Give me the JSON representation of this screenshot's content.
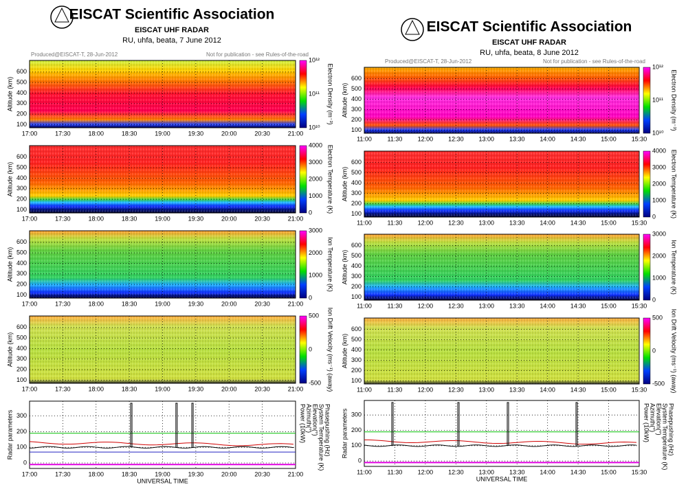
{
  "plots": [
    {
      "header": {
        "org": "EISCAT Scientific Association",
        "radar": "EISCAT UHF RADAR",
        "subtitle": "RU, uhfa, beata, 7 June 2012",
        "produced": "Produced@EISCAT-T, 28-Jun-2012",
        "notice": "Not for publication - see Rules-of-the-road"
      },
      "xticks": [
        "17:00",
        "17:30",
        "18:00",
        "18:30",
        "19:00",
        "19:30",
        "20:00",
        "20:30",
        "21:00"
      ],
      "xlabel": "UNIVERSAL TIME",
      "panels": [
        {
          "ylabel": "Altitude (km)",
          "yticks": [
            "100",
            "200",
            "300",
            "400",
            "500",
            "600"
          ],
          "cbar_label": "Electron Density (m⁻³)",
          "cbar_ticks": [
            "10¹⁰",
            "10¹¹",
            "10¹²"
          ]
        },
        {
          "ylabel": "Altitude (km)",
          "yticks": [
            "100",
            "200",
            "300",
            "400",
            "500",
            "600"
          ],
          "cbar_label": "Electron Temperature (K)",
          "cbar_ticks": [
            "0",
            "1000",
            "2000",
            "3000",
            "4000"
          ]
        },
        {
          "ylabel": "Altitude (km)",
          "yticks": [
            "100",
            "200",
            "300",
            "400",
            "500",
            "600"
          ],
          "cbar_label": "Ion Temperature (K)",
          "cbar_ticks": [
            "0",
            "1000",
            "2000",
            "3000"
          ]
        },
        {
          "ylabel": "Altitude (km)",
          "yticks": [
            "100",
            "200",
            "300",
            "400",
            "500",
            "600"
          ],
          "cbar_label": "Ion Drift Velocity (ms⁻¹) (away)",
          "cbar_ticks": [
            "-500",
            "0",
            "500"
          ]
        },
        {
          "ylabel": "Radar parameters",
          "yticks": [
            "0",
            "100",
            "200",
            "300"
          ],
          "legend": [
            "Power (10kW)",
            "Azimuth(°)",
            "Elevation(°)",
            "System Temperature (K)",
            "Phasepushing (Hz)"
          ]
        }
      ]
    },
    {
      "header": {
        "org": "EISCAT Scientific Association",
        "radar": "EISCAT UHF RADAR",
        "subtitle": "RU, uhfa, beata, 8 June 2012",
        "produced": "Produced@EISCAT-T, 28-Jun-2012",
        "notice": "Not for publication - see Rules-of-the-road"
      },
      "xticks": [
        "11:00",
        "11:30",
        "12:00",
        "12:30",
        "13:00",
        "13:30",
        "14:00",
        "14:30",
        "15:00",
        "15:30"
      ],
      "xlabel": "UNIVERSAL TIME",
      "panels": [
        {
          "ylabel": "Altitude (km)",
          "yticks": [
            "100",
            "200",
            "300",
            "400",
            "500",
            "600"
          ],
          "cbar_label": "Electron Density (m⁻³)",
          "cbar_ticks": [
            "10¹⁰",
            "10¹¹",
            "10¹²"
          ]
        },
        {
          "ylabel": "Altitude (km)",
          "yticks": [
            "100",
            "200",
            "300",
            "400",
            "500",
            "600"
          ],
          "cbar_label": "Electron Temperature (K)",
          "cbar_ticks": [
            "0",
            "1000",
            "2000",
            "3000",
            "4000"
          ]
        },
        {
          "ylabel": "Altitude (km)",
          "yticks": [
            "100",
            "200",
            "300",
            "400",
            "500",
            "600"
          ],
          "cbar_label": "Ion Temperature (K)",
          "cbar_ticks": [
            "0",
            "1000",
            "2000",
            "3000"
          ]
        },
        {
          "ylabel": "Altitude (km)",
          "yticks": [
            "100",
            "200",
            "300",
            "400",
            "500",
            "600"
          ],
          "cbar_label": "Ion Drift Velocity (ms⁻¹) (away)",
          "cbar_ticks": [
            "-500",
            "0",
            "500"
          ]
        },
        {
          "ylabel": "Radar parameters",
          "yticks": [
            "0",
            "100",
            "200",
            "300"
          ],
          "legend": [
            "Power (10kW)",
            "Azimuth(°)",
            "Elevation(°)",
            "System Temperature (K)",
            "Phasepushing (Hz)"
          ]
        }
      ]
    }
  ]
}
